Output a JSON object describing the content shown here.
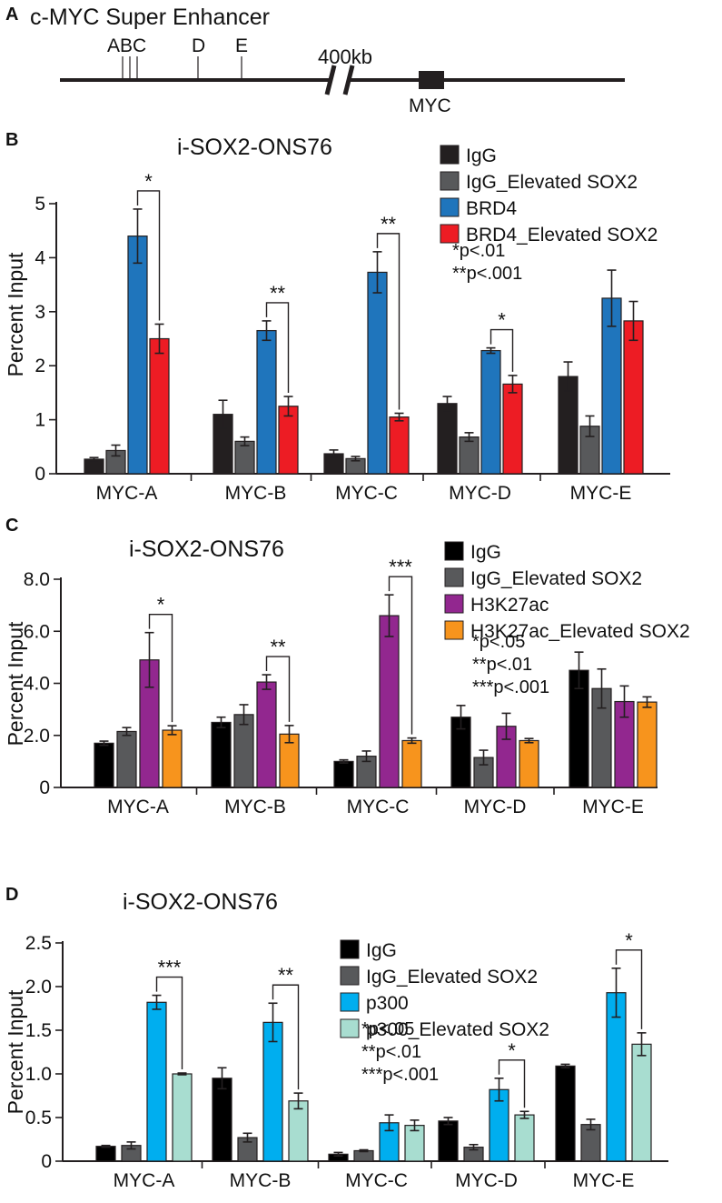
{
  "panel_a": {
    "label": "A",
    "title": "c-MYC Super Enhancer",
    "sites": [
      "A",
      "B",
      "C",
      "D",
      "E"
    ],
    "site_label_abc": "ABC",
    "break_label": "400kb",
    "gene_label": "MYC"
  },
  "chart_data": [
    {
      "panel": "B",
      "type": "bar",
      "title": "i-SOX2-ONS76",
      "ylabel": "Percent Input",
      "ylim": [
        0,
        5
      ],
      "yticks": [
        "0",
        "1",
        "2",
        "3",
        "4",
        "5"
      ],
      "ytick_values": [
        0,
        1,
        2,
        3,
        4,
        5
      ],
      "categories": [
        "MYC-A",
        "MYC-B",
        "MYC-C",
        "MYC-D",
        "MYC-E"
      ],
      "series": [
        {
          "name": "IgG",
          "color": "#231f20",
          "values": [
            0.27,
            1.1,
            0.37,
            1.3,
            1.8
          ],
          "errors": [
            0.03,
            0.26,
            0.07,
            0.13,
            0.27
          ]
        },
        {
          "name": "IgG_Elevated SOX2",
          "color": "#58595b",
          "values": [
            0.43,
            0.6,
            0.28,
            0.68,
            0.88
          ],
          "errors": [
            0.1,
            0.08,
            0.04,
            0.08,
            0.19
          ]
        },
        {
          "name": "BRD4",
          "color": "#1f75bc",
          "values": [
            4.4,
            2.65,
            3.73,
            2.28,
            3.25
          ],
          "errors": [
            0.5,
            0.18,
            0.38,
            0.05,
            0.52
          ]
        },
        {
          "name": "BRD4_Elevated SOX2",
          "color": "#ed1c24",
          "values": [
            2.5,
            1.25,
            1.05,
            1.66,
            2.83
          ],
          "errors": [
            0.27,
            0.18,
            0.07,
            0.16,
            0.36
          ]
        }
      ],
      "significance": [
        {
          "category": "MYC-A",
          "from": 2,
          "to": 3,
          "label": "*"
        },
        {
          "category": "MYC-B",
          "from": 2,
          "to": 3,
          "label": "**"
        },
        {
          "category": "MYC-C",
          "from": 2,
          "to": 3,
          "label": "**"
        },
        {
          "category": "MYC-D",
          "from": 2,
          "to": 3,
          "label": "*"
        }
      ],
      "pvalues": [
        "*p<.01",
        "**p<.001"
      ]
    },
    {
      "panel": "C",
      "type": "bar",
      "title": "i-SOX2-ONS76",
      "ylabel": "Percent Input",
      "ylim": [
        0,
        8
      ],
      "yticks": [
        "0",
        "2.0",
        "4.0",
        "6.0",
        "8.0"
      ],
      "ytick_values": [
        0,
        2,
        4,
        6,
        8
      ],
      "categories": [
        "MYC-A",
        "MYC-B",
        "MYC-C",
        "MYC-D",
        "MYC-E"
      ],
      "series": [
        {
          "name": "IgG",
          "color": "#000000",
          "values": [
            1.7,
            2.5,
            1.0,
            2.7,
            4.5
          ],
          "errors": [
            0.08,
            0.2,
            0.06,
            0.45,
            0.7
          ]
        },
        {
          "name": "IgG_Elevated SOX2",
          "color": "#58595b",
          "values": [
            2.15,
            2.8,
            1.2,
            1.15,
            3.8
          ],
          "errors": [
            0.15,
            0.38,
            0.2,
            0.28,
            0.75
          ]
        },
        {
          "name": "H3K27ac",
          "color": "#92278f",
          "values": [
            4.9,
            4.05,
            6.6,
            2.35,
            3.3
          ],
          "errors": [
            1.05,
            0.28,
            0.8,
            0.5,
            0.6
          ]
        },
        {
          "name": "H3K27ac_Elevated SOX2",
          "color": "#f7941d",
          "values": [
            2.2,
            2.05,
            1.8,
            1.8,
            3.28
          ],
          "errors": [
            0.17,
            0.33,
            0.1,
            0.08,
            0.2
          ]
        }
      ],
      "significance": [
        {
          "category": "MYC-A",
          "from": 2,
          "to": 3,
          "label": "*"
        },
        {
          "category": "MYC-B",
          "from": 2,
          "to": 3,
          "label": "**"
        },
        {
          "category": "MYC-C",
          "from": 2,
          "to": 3,
          "label": "***"
        }
      ],
      "pvalues": [
        "*p<.05",
        "**p<.01",
        "***p<.001"
      ]
    },
    {
      "panel": "D",
      "type": "bar",
      "title": "i-SOX2-ONS76",
      "ylabel": "Percent Input",
      "ylim": [
        0,
        2.5
      ],
      "yticks": [
        "0",
        "0.5",
        "1.0",
        "1.5",
        "2.0",
        "2.5"
      ],
      "ytick_values": [
        0,
        0.5,
        1.0,
        1.5,
        2.0,
        2.5
      ],
      "categories": [
        "MYC-A",
        "MYC-B",
        "MYC-C",
        "MYC-D",
        "MYC-E"
      ],
      "series": [
        {
          "name": "IgG",
          "color": "#000000",
          "values": [
            0.17,
            0.95,
            0.08,
            0.46,
            1.09
          ],
          "errors": [
            0.01,
            0.12,
            0.02,
            0.04,
            0.02
          ]
        },
        {
          "name": "IgG_Elevated SOX2",
          "color": "#58595b",
          "values": [
            0.18,
            0.27,
            0.12,
            0.16,
            0.42
          ],
          "errors": [
            0.04,
            0.05,
            0.01,
            0.03,
            0.06
          ]
        },
        {
          "name": "p300",
          "color": "#00aeef",
          "values": [
            1.82,
            1.59,
            0.44,
            0.82,
            1.93
          ],
          "errors": [
            0.08,
            0.22,
            0.09,
            0.13,
            0.28
          ]
        },
        {
          "name": "p300_Elevated SOX2",
          "color": "#a8ddd0",
          "values": [
            1.0,
            0.69,
            0.41,
            0.53,
            1.34
          ],
          "errors": [
            0.01,
            0.09,
            0.06,
            0.04,
            0.13
          ]
        }
      ],
      "significance": [
        {
          "category": "MYC-A",
          "from": 2,
          "to": 3,
          "label": "***"
        },
        {
          "category": "MYC-B",
          "from": 2,
          "to": 3,
          "label": "**"
        },
        {
          "category": "MYC-D",
          "from": 2,
          "to": 3,
          "label": "*"
        },
        {
          "category": "MYC-E",
          "from": 2,
          "to": 3,
          "label": "*"
        }
      ],
      "pvalues": [
        "*p<.05",
        "**p<.01",
        "***p<.001"
      ]
    }
  ],
  "panel_labels": [
    "B",
    "C",
    "D"
  ]
}
